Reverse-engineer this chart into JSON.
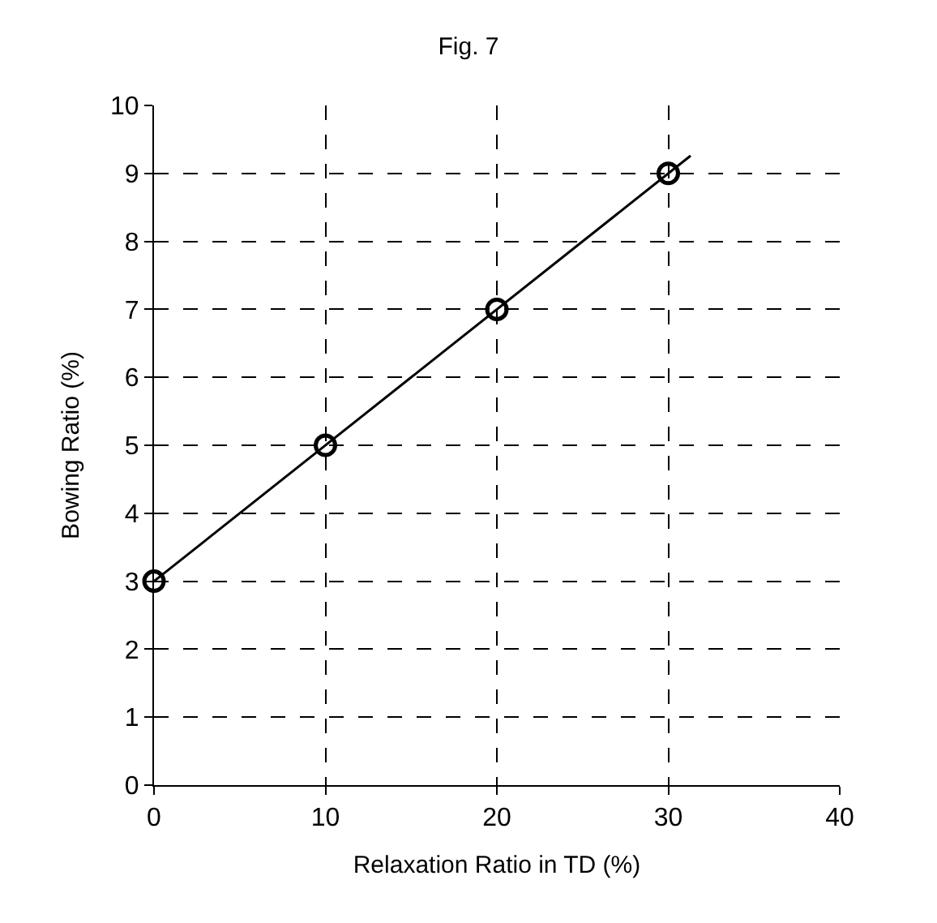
{
  "chart_data": {
    "type": "scatter",
    "title": "Fig. 7",
    "xlabel": "Relaxation Ratio in TD (%)",
    "ylabel": "Bowing Ratio (%)",
    "x": [
      0,
      10,
      20,
      30
    ],
    "series": [
      {
        "color": "#000000",
        "values": [
          3,
          5,
          7,
          9
        ],
        "marker": "circle"
      },
      {
        "type": "line",
        "color": "#000000",
        "x": [
          0,
          31.3
        ],
        "values": [
          3,
          9.26
        ],
        "marker": "none"
      }
    ],
    "xlim": [
      0,
      40
    ],
    "xticks": [
      0,
      10,
      20,
      30,
      40
    ],
    "ylim": [
      0,
      10
    ],
    "yticks": [
      0,
      1,
      2,
      3,
      4,
      5,
      6,
      7,
      8,
      9,
      10
    ],
    "grid": true,
    "line_style": "solid"
  }
}
